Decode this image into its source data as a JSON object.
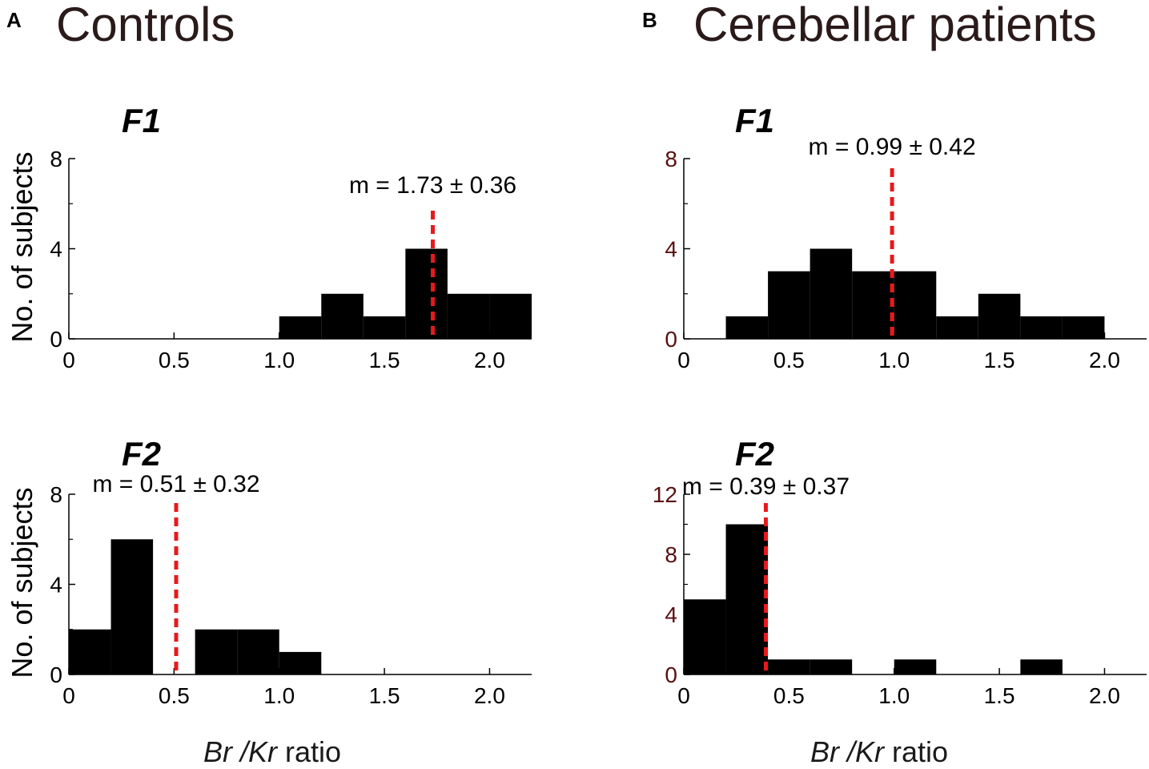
{
  "panels": [
    {
      "letter": "A",
      "title": "Controls",
      "xlabel_var": "Br /Kr",
      "xlabel_rest": " ratio"
    },
    {
      "letter": "B",
      "title": "Cerebellar patients",
      "xlabel_var": "Br /Kr",
      "xlabel_rest": " ratio"
    }
  ],
  "colors": {
    "bars": "#000000",
    "mean_line": "#e8191c",
    "tick_dark": "#000000",
    "tick_brown": "#5a0f0f"
  },
  "chart_data": [
    {
      "type": "bar",
      "panel": "A",
      "subtitle": "F1",
      "ylabel": "No. of subjects",
      "xlabel": "Br /Kr ratio",
      "bin_width": 0.2,
      "bin_starts": [
        1.0,
        1.2,
        1.4,
        1.6,
        1.8,
        2.0
      ],
      "values": [
        1,
        2,
        1,
        4,
        2,
        2
      ],
      "mean": 1.73,
      "mean_label": "m = 1.73 ± 0.36",
      "xlim": [
        0,
        2.2
      ],
      "ylim": [
        0,
        8
      ],
      "xticks": [
        0,
        0.5,
        1.0,
        1.5,
        2.0
      ],
      "xtick_labels": [
        "0",
        "0.5",
        "1.0",
        "1.5",
        "2.0"
      ],
      "yticks": [
        0,
        4,
        8
      ],
      "ytick_labels": [
        "0",
        "4",
        "8"
      ]
    },
    {
      "type": "bar",
      "panel": "B",
      "subtitle": "F1",
      "ylabel": "",
      "xlabel": "Br /Kr ratio",
      "bin_width": 0.2,
      "bin_starts": [
        0.2,
        0.4,
        0.6,
        0.8,
        1.0,
        1.2,
        1.4,
        1.6,
        1.8
      ],
      "values": [
        1,
        3,
        4,
        3,
        3,
        1,
        2,
        1,
        1
      ],
      "mean": 0.99,
      "mean_label": "m = 0.99 ± 0.42",
      "xlim": [
        0,
        2.2
      ],
      "ylim": [
        0,
        8
      ],
      "xticks": [
        0,
        0.5,
        1.0,
        1.5,
        2.0
      ],
      "xtick_labels": [
        "0",
        "0.5",
        "1.0",
        "1.5",
        "2.0"
      ],
      "yticks": [
        0,
        4,
        8
      ],
      "ytick_labels": [
        "0",
        "4",
        "8"
      ]
    },
    {
      "type": "bar",
      "panel": "A",
      "subtitle": "F2",
      "ylabel": "No. of subjects",
      "xlabel": "Br /Kr ratio",
      "bin_width": 0.2,
      "bin_starts": [
        0.0,
        0.2,
        0.6,
        0.8,
        1.0
      ],
      "values": [
        2,
        6,
        2,
        2,
        1
      ],
      "mean": 0.51,
      "mean_label": "m = 0.51 ± 0.32",
      "xlim": [
        0,
        2.2
      ],
      "ylim": [
        0,
        8
      ],
      "xticks": [
        0,
        0.5,
        1.0,
        1.5,
        2.0
      ],
      "xtick_labels": [
        "0",
        "0.5",
        "1.0",
        "1.5",
        "2.0"
      ],
      "yticks": [
        0,
        4,
        8
      ],
      "ytick_labels": [
        "0",
        "4",
        "8"
      ]
    },
    {
      "type": "bar",
      "panel": "B",
      "subtitle": "F2",
      "ylabel": "",
      "xlabel": "Br /Kr ratio",
      "bin_width": 0.2,
      "bin_starts": [
        0.0,
        0.2,
        0.4,
        0.6,
        1.0,
        1.6
      ],
      "values": [
        5,
        10,
        1,
        1,
        1,
        1
      ],
      "mean": 0.39,
      "mean_label": "m = 0.39 ± 0.37",
      "xlim": [
        0,
        2.2
      ],
      "ylim": [
        0,
        12
      ],
      "xticks": [
        0,
        0.5,
        1.0,
        1.5,
        2.0
      ],
      "xtick_labels": [
        "0",
        "0.5",
        "1.0",
        "1.5",
        "2.0"
      ],
      "yticks": [
        0,
        4,
        8,
        12
      ],
      "ytick_labels": [
        "0",
        "4",
        "8",
        "12"
      ]
    }
  ]
}
